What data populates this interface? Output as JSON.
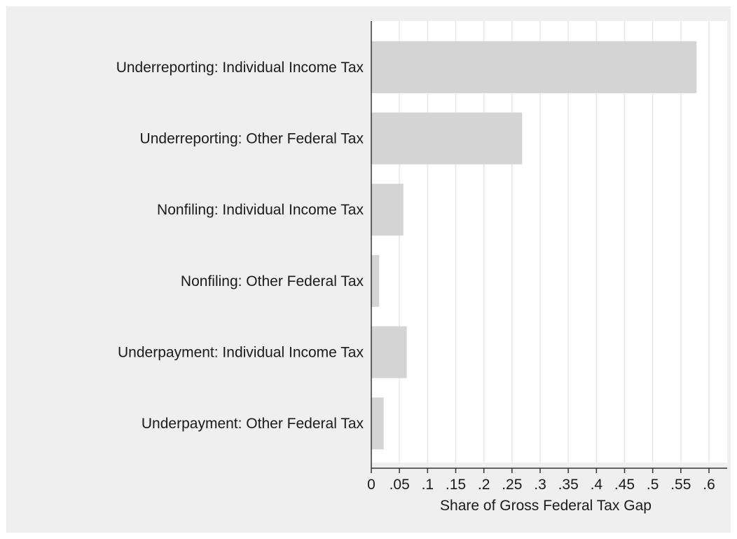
{
  "chart_data": {
    "type": "bar",
    "orientation": "horizontal",
    "categories": [
      "Underreporting: Individual Income Tax",
      "Underreporting: Other Federal Tax",
      "Nonfiling: Individual Income Tax",
      "Nonfiling: Other Federal Tax",
      "Underpayment: Individual Income Tax",
      "Underpayment: Other Federal Tax"
    ],
    "values": [
      0.578,
      0.268,
      0.057,
      0.014,
      0.063,
      0.022
    ],
    "xlabel": "Share of Gross Federal Tax Gap",
    "ylabel": "",
    "xlim": [
      0,
      0.63
    ],
    "xticks": [
      0,
      0.05,
      0.1,
      0.15,
      0.2,
      0.25,
      0.3,
      0.35,
      0.4,
      0.45,
      0.5,
      0.55,
      0.6
    ],
    "xtick_labels": [
      "0",
      ".05",
      ".1",
      ".15",
      ".2",
      ".25",
      ".3",
      ".35",
      ".4",
      ".45",
      ".5",
      ".55",
      ".6"
    ],
    "grid": "vertical",
    "colors": {
      "bar": "#d4d4d4",
      "plot_background": "#ffffff",
      "frame_background": "#efefef",
      "gridline": "#e8e8e8",
      "axis": "#333333"
    }
  }
}
